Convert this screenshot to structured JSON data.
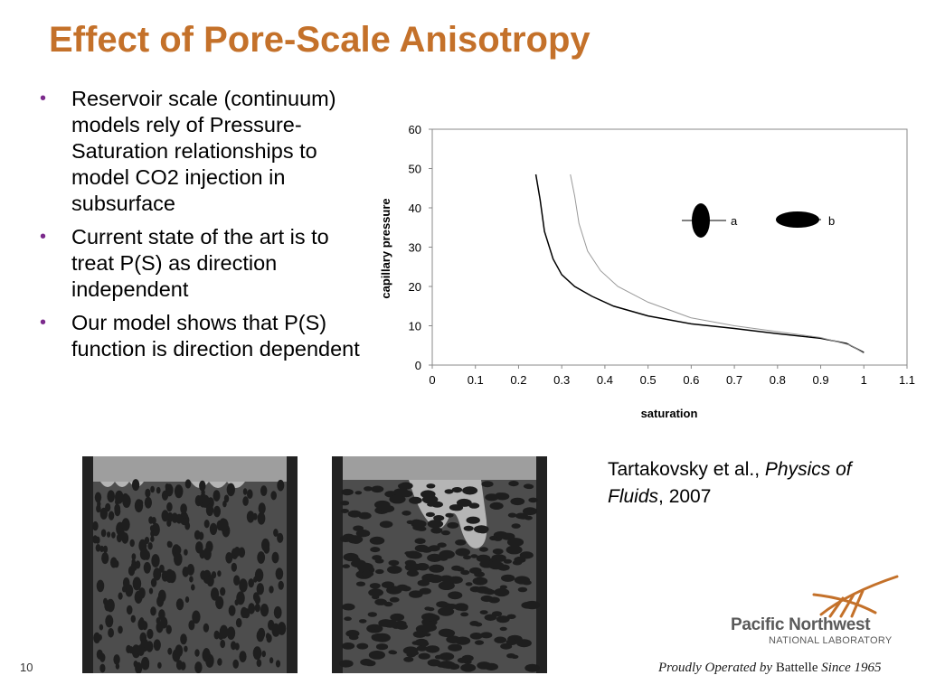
{
  "slide": {
    "title": "Effect of Pore-Scale Anisotropy",
    "number": "10",
    "title_color": "#c4712a",
    "bullet_color": "#7b2a8c"
  },
  "bullets": [
    "Reservoir scale (continuum) models rely of Pressure-Saturation relationships to model CO2 injection in subsurface",
    "Current state of the art is to treat P(S) as direction independent",
    "Our model shows that P(S) function is direction dependent"
  ],
  "citation": {
    "authors": "Tartakovsky et al., ",
    "journal": "Physics of Fluids",
    "year": ", 2007"
  },
  "logo": {
    "line1": "Pacific Northwest",
    "line2": "NATIONAL LABORATORY",
    "tagline_pre": "Proudly Operated by ",
    "tagline_name": "Battelle",
    "tagline_post": " Since 1965"
  },
  "chart_data": {
    "type": "line",
    "xlabel": "saturation",
    "ylabel": "capillary pressure",
    "xlim": [
      0,
      1.1
    ],
    "ylim": [
      0,
      60
    ],
    "x_ticks": [
      "0",
      "0.1",
      "0.2",
      "0.3",
      "0.4",
      "0.5",
      "0.6",
      "0.7",
      "0.8",
      "0.9",
      "1",
      "1.1"
    ],
    "y_ticks": [
      "0",
      "10",
      "20",
      "30",
      "40",
      "50",
      "60"
    ],
    "grid": false,
    "legend_position": "top-right",
    "series": [
      {
        "name": "a",
        "color": "#000000",
        "points": [
          [
            0.24,
            48.5
          ],
          [
            0.25,
            42
          ],
          [
            0.26,
            34
          ],
          [
            0.28,
            27
          ],
          [
            0.3,
            23
          ],
          [
            0.33,
            20
          ],
          [
            0.37,
            17.5
          ],
          [
            0.42,
            15
          ],
          [
            0.5,
            12.5
          ],
          [
            0.6,
            10.5
          ],
          [
            0.7,
            9.3
          ],
          [
            0.8,
            8
          ],
          [
            0.9,
            6.8
          ],
          [
            0.96,
            5.5
          ],
          [
            1.0,
            3.2
          ]
        ]
      },
      {
        "name": "b",
        "color": "#999999",
        "points": [
          [
            0.32,
            48.5
          ],
          [
            0.33,
            43
          ],
          [
            0.34,
            36
          ],
          [
            0.36,
            29
          ],
          [
            0.39,
            24
          ],
          [
            0.43,
            20
          ],
          [
            0.5,
            16
          ],
          [
            0.6,
            12
          ],
          [
            0.7,
            10
          ],
          [
            0.8,
            8.5
          ],
          [
            0.9,
            7
          ],
          [
            0.97,
            5
          ],
          [
            1.0,
            3
          ]
        ]
      }
    ]
  }
}
